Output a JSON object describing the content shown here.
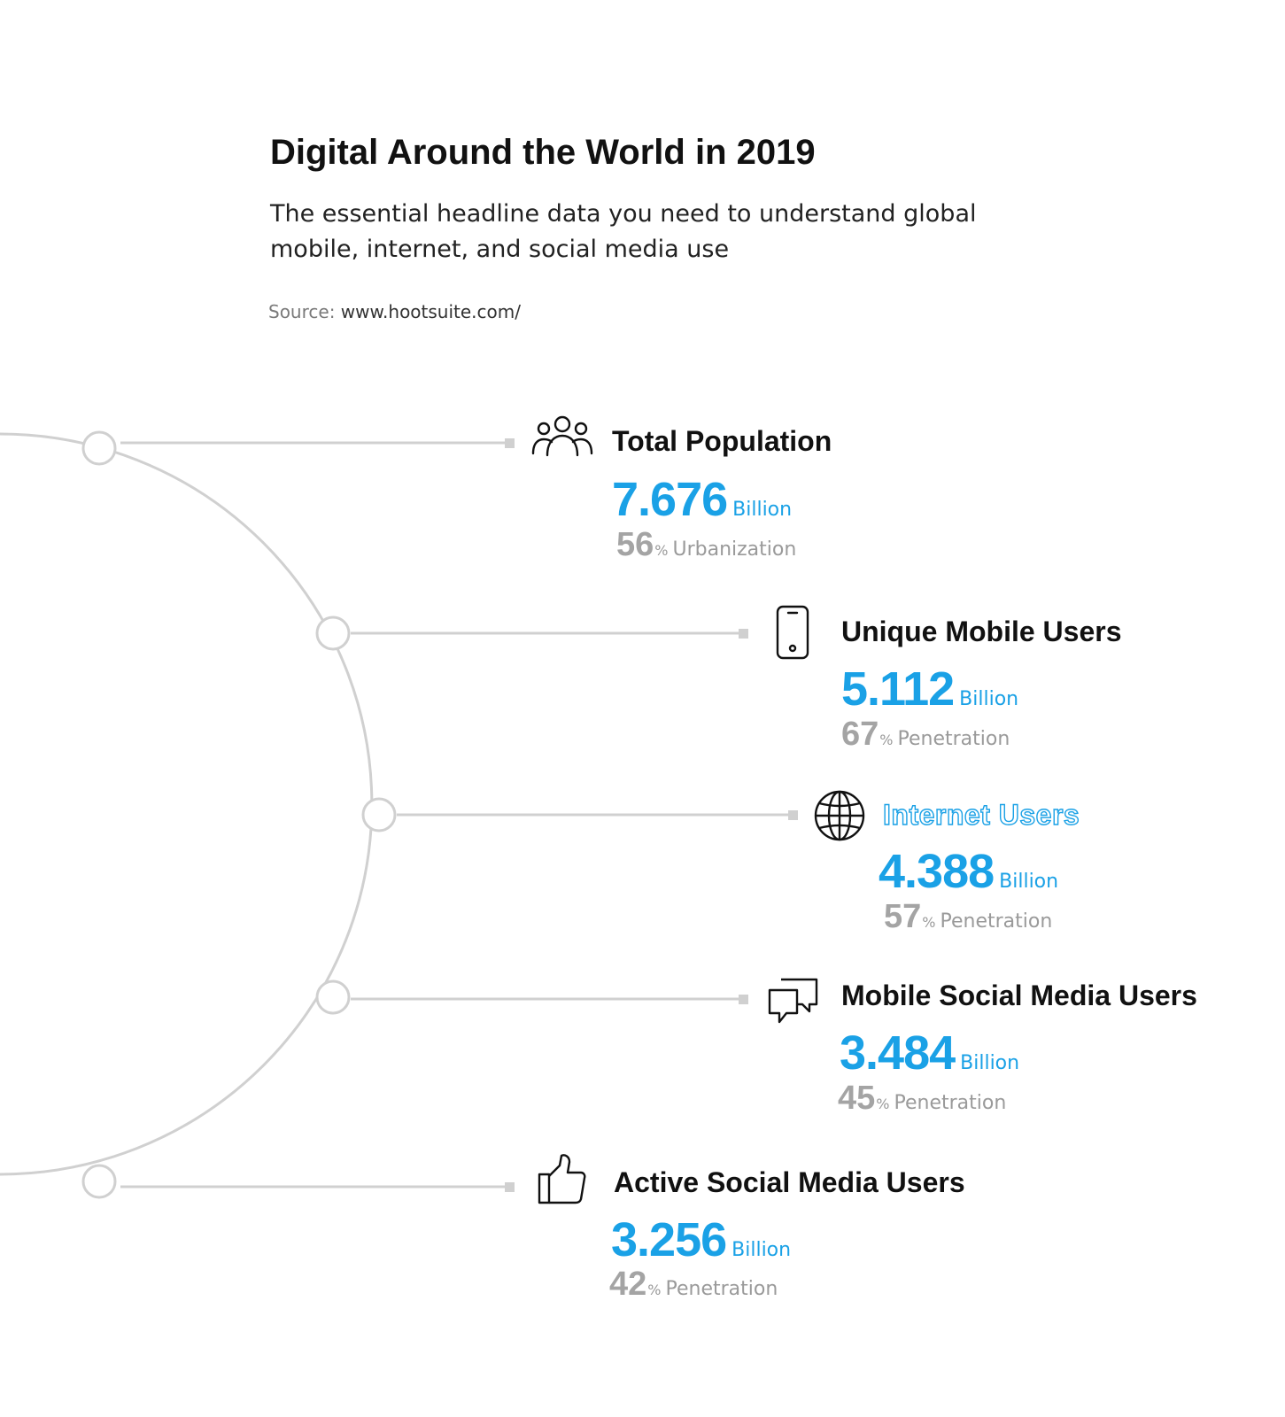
{
  "header": {
    "title": "Digital Around the World in 2019",
    "subtitle": "The essential headline data you need to understand global mobile, internet, and social media use",
    "source_label": "Source:",
    "source_url": "www.hootsuite.com/"
  },
  "colors": {
    "accent": "#1aa1e6",
    "muted": "#a4a4a4",
    "line": "#d0d0d0"
  },
  "items": [
    {
      "icon": "people-icon",
      "title": "Total Population",
      "value": "7.676",
      "unit": "Billion",
      "pct": "56",
      "pct_symbol": "%",
      "pct_label": "Urbanization"
    },
    {
      "icon": "smartphone-icon",
      "title": "Unique Mobile Users",
      "value": "5.112",
      "unit": "Billion",
      "pct": "67",
      "pct_symbol": "%",
      "pct_label": "Penetration"
    },
    {
      "icon": "globe-icon",
      "title": "Internet Users",
      "value": "4.388",
      "unit": "Billion",
      "pct": "57",
      "pct_symbol": "%",
      "pct_label": "Penetration"
    },
    {
      "icon": "chat-bubbles-icon",
      "title": "Mobile Social Media Users",
      "value": "3.484",
      "unit": "Billion",
      "pct": "45",
      "pct_symbol": "%",
      "pct_label": "Penetration"
    },
    {
      "icon": "thumbs-up-icon",
      "title": "Active Social Media Users",
      "value": "3.256",
      "unit": "Billion",
      "pct": "42",
      "pct_symbol": "%",
      "pct_label": "Penetration"
    }
  ]
}
